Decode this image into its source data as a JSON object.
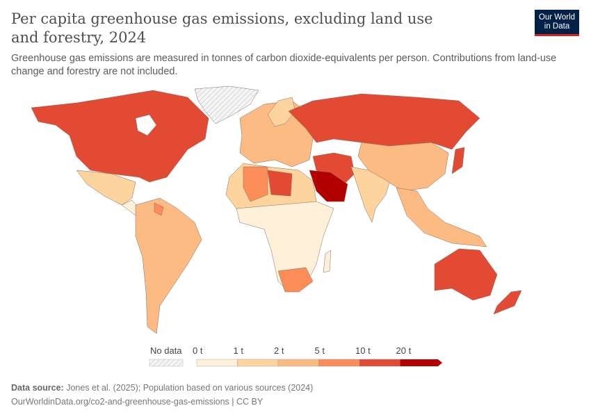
{
  "header": {
    "title": "Per capita greenhouse gas emissions, excluding land use and forestry, 2024",
    "subtitle": "Greenhouse gas emissions are measured in tonnes of carbon dioxide-equivalents per person. Contributions from land-use change and forestry are not included.",
    "logo": "Our World in Data"
  },
  "legend": {
    "no_data": "No data",
    "ticks": [
      "0 t",
      "1 t",
      "2 t",
      "5 t",
      "10 t",
      "20 t"
    ],
    "bins": [
      {
        "range": "0–1 t",
        "color": "#fef0d9"
      },
      {
        "range": "1–2 t",
        "color": "#fdd49e"
      },
      {
        "range": "2–5 t",
        "color": "#fdbb84"
      },
      {
        "range": "5–10 t",
        "color": "#fc8d59"
      },
      {
        "range": "10–20 t",
        "color": "#e34a33"
      },
      {
        "range": ">20 t",
        "color": "#b30000"
      }
    ]
  },
  "footer": {
    "source_label": "Data source:",
    "source": "Jones et al. (2025); Population based on various sources (2024)",
    "url": "OurWorldinData.org/co2-and-greenhouse-gas-emissions | CC BY"
  }
}
